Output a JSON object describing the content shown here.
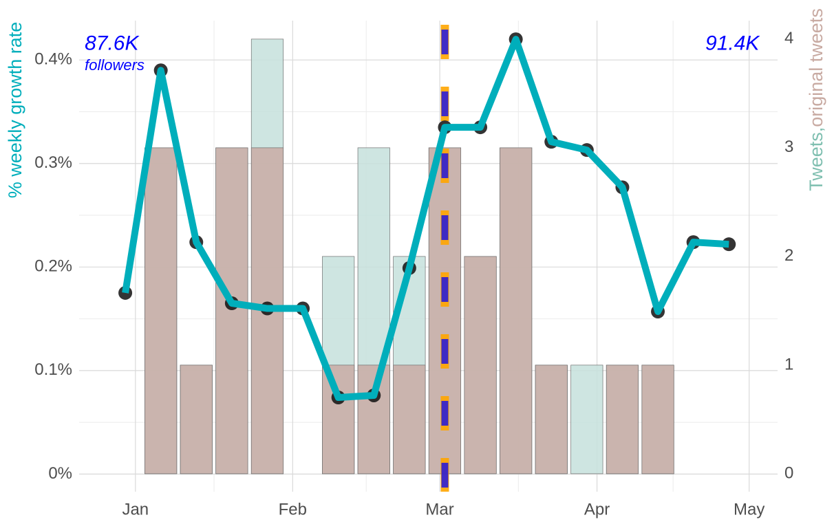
{
  "chart_data": {
    "type": "combo",
    "x": [
      -2,
      5,
      12,
      19,
      26,
      33,
      40,
      47,
      54,
      61,
      68,
      75,
      82,
      89,
      96,
      103,
      110,
      117
    ],
    "xlim": [
      -11.1,
      126.6
    ],
    "xticks": [
      {
        "value": 0,
        "label": "Jan"
      },
      {
        "value": 31,
        "label": "Feb"
      },
      {
        "value": 60,
        "label": "Mar"
      },
      {
        "value": 91,
        "label": "Apr"
      },
      {
        "value": 121,
        "label": "May"
      }
    ],
    "xminorticks": [
      15.5,
      45.5,
      75.5,
      106
    ],
    "ylim": [
      -0.017,
      0.438
    ],
    "yticks": [
      {
        "value": 0,
        "label": "0%"
      },
      {
        "value": 0.1,
        "label": "0.1%"
      },
      {
        "value": 0.2,
        "label": "0.2%"
      },
      {
        "value": 0.3,
        "label": "0.3%"
      },
      {
        "value": 0.4,
        "label": "0.4%"
      }
    ],
    "yminorticks": [
      0.05,
      0.15,
      0.25,
      0.35
    ],
    "y2lim": [
      -0.165,
      4.17
    ],
    "y2ticks": [
      0,
      1,
      2,
      3,
      4
    ],
    "grid": true,
    "ylabel": "% weekly growth rate",
    "ylabel_color": "#00aebb",
    "y2label": [
      {
        "text": "Tweets,",
        "color": "#7fbfb0"
      },
      {
        "text": "original tweets",
        "color": "#c8aaa2"
      }
    ],
    "series": [
      {
        "type": "bar",
        "axis": "y2",
        "color": "#c5e0dc",
        "values": [
          0,
          3,
          1,
          3,
          4,
          0,
          2,
          3,
          2,
          3,
          2,
          3,
          1,
          1,
          1,
          1,
          0,
          0
        ]
      },
      {
        "type": "bar",
        "axis": "y2",
        "color": "#c9aba5",
        "values": [
          0,
          3,
          1,
          3,
          3,
          0,
          1,
          1,
          1,
          3,
          2,
          3,
          1,
          0,
          1,
          1,
          0,
          0
        ]
      },
      {
        "type": "line",
        "color": "#00aebb",
        "values": [
          0.175,
          0.39,
          0.224,
          0.165,
          0.16,
          0.16,
          0.074,
          0.076,
          0.199,
          0.335,
          0.335,
          0.42,
          0.321,
          0.313,
          0.277,
          0.157,
          0.224,
          0.222
        ]
      }
    ],
    "vline": {
      "x": 61,
      "colors": [
        "#ffa500",
        "#0000ff"
      ]
    },
    "annotations": [
      {
        "text": "87.6K",
        "x": -10,
        "y": 0.415,
        "size": 30,
        "anchor": "start"
      },
      {
        "text": "followers",
        "x": -10,
        "y": 0.394,
        "size": 22,
        "anchor": "start"
      },
      {
        "text": "91.4K",
        "x": 123,
        "y": 0.415,
        "size": 30,
        "anchor": "end"
      }
    ],
    "annotation_color": "#0000ff"
  }
}
